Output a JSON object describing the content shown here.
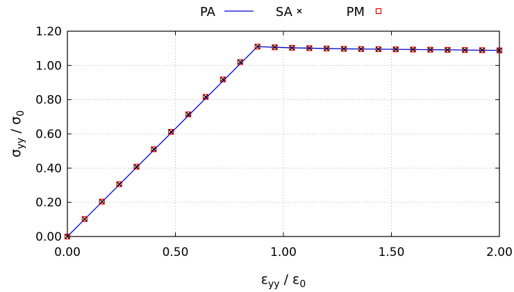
{
  "chart_data": {
    "type": "line",
    "title": "",
    "xlabel": "ε_yy / ε_0",
    "ylabel": "σ_yy / σ_0",
    "xlim": [
      0,
      2
    ],
    "ylim": [
      0,
      1.2
    ],
    "grid": true,
    "legend_position": "top",
    "x_ticks": [
      "0.00",
      "0.50",
      "1.00",
      "1.50",
      "2.00"
    ],
    "y_ticks": [
      "0.00",
      "0.20",
      "0.40",
      "0.60",
      "0.80",
      "1.00",
      "1.20"
    ],
    "series": [
      {
        "name": "PA",
        "style": "line",
        "color": "#0000cc",
        "x": [
          0,
          0.88,
          0.96,
          1.04,
          1.12,
          1.2,
          1.28,
          1.36,
          1.44,
          1.52,
          1.6,
          1.68,
          1.76,
          1.84,
          1.92,
          2.0
        ],
        "y": [
          0,
          1.11,
          1.106,
          1.103,
          1.101,
          1.099,
          1.097,
          1.096,
          1.095,
          1.094,
          1.093,
          1.092,
          1.091,
          1.09,
          1.089,
          1.088
        ]
      },
      {
        "name": "SA",
        "style": "cross",
        "color": "#000000",
        "x": [
          0,
          0.08,
          0.16,
          0.24,
          0.32,
          0.4,
          0.48,
          0.56,
          0.64,
          0.72,
          0.8,
          0.88,
          0.96,
          1.04,
          1.12,
          1.2,
          1.28,
          1.36,
          1.44,
          1.52,
          1.6,
          1.68,
          1.76,
          1.84,
          1.92,
          2.0
        ],
        "y": [
          0,
          0.102,
          0.204,
          0.306,
          0.408,
          0.51,
          0.612,
          0.714,
          0.816,
          0.918,
          1.02,
          1.11,
          1.106,
          1.103,
          1.101,
          1.099,
          1.097,
          1.096,
          1.095,
          1.094,
          1.093,
          1.092,
          1.091,
          1.09,
          1.089,
          1.088
        ]
      },
      {
        "name": "PM",
        "style": "square",
        "color": "#e00000",
        "x": [
          0,
          0.08,
          0.16,
          0.24,
          0.32,
          0.4,
          0.48,
          0.56,
          0.64,
          0.72,
          0.8,
          0.88,
          0.96,
          1.04,
          1.12,
          1.2,
          1.28,
          1.36,
          1.44,
          1.52,
          1.6,
          1.68,
          1.76,
          1.84,
          1.92,
          2.0
        ],
        "y": [
          0,
          0.102,
          0.204,
          0.306,
          0.408,
          0.51,
          0.612,
          0.714,
          0.816,
          0.918,
          1.02,
          1.11,
          1.106,
          1.103,
          1.101,
          1.099,
          1.097,
          1.096,
          1.095,
          1.094,
          1.093,
          1.092,
          1.091,
          1.09,
          1.089,
          1.088
        ]
      }
    ]
  }
}
